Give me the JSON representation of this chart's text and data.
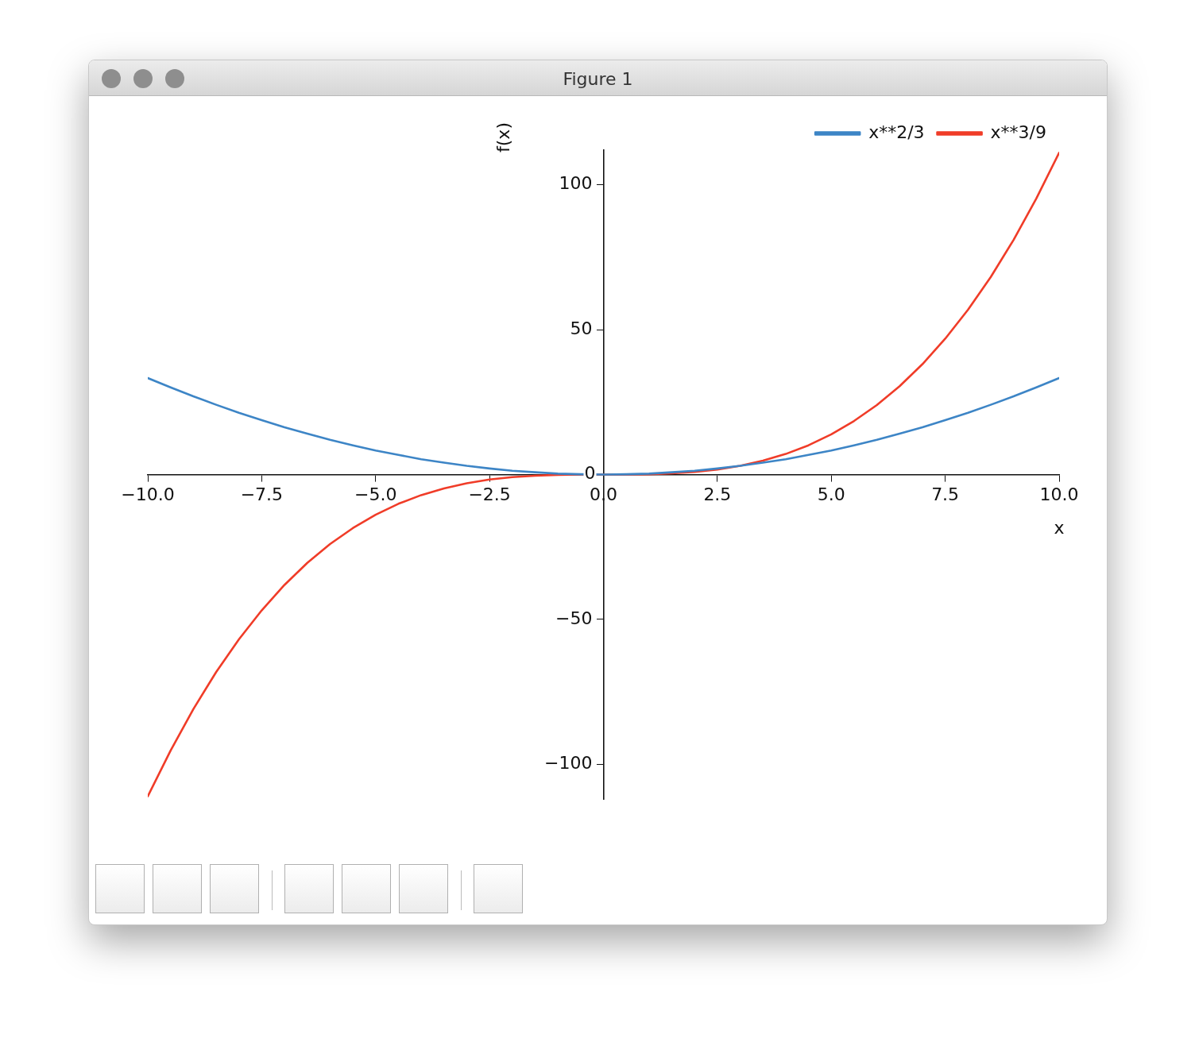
{
  "chart_data": {
    "type": "line",
    "title": "Figure 1",
    "xlabel": "x",
    "ylabel": "f(x)",
    "x": [
      -10,
      -9.5,
      -9,
      -8.5,
      -8,
      -7.5,
      -7,
      -6.5,
      -6,
      -5.5,
      -5,
      -4.5,
      -4,
      -3.5,
      -3,
      -2.5,
      -2,
      -1.5,
      -1,
      -0.5,
      0,
      0.5,
      1,
      1.5,
      2,
      2.5,
      3,
      3.5,
      4,
      4.5,
      5,
      5.5,
      6,
      6.5,
      7,
      7.5,
      8,
      8.5,
      9,
      9.5,
      10
    ],
    "series": [
      {
        "name": "x**2/3",
        "color": "#3d85c6",
        "values": [
          33.3,
          30.1,
          27,
          24.1,
          21.3,
          18.8,
          16.3,
          14.1,
          12,
          10.1,
          8.3,
          6.8,
          5.3,
          4.1,
          3,
          2.1,
          1.3,
          0.8,
          0.3,
          0.1,
          0,
          0.1,
          0.3,
          0.8,
          1.3,
          2.1,
          3,
          4.1,
          5.3,
          6.8,
          8.3,
          10.1,
          12,
          14.1,
          16.3,
          18.8,
          21.3,
          24.1,
          27,
          30.1,
          33.3
        ]
      },
      {
        "name": "x**3/9",
        "color": "#f03c28",
        "values": [
          -111.1,
          -95.3,
          -81,
          -68.2,
          -56.9,
          -46.9,
          -38.1,
          -30.5,
          -24,
          -18.5,
          -13.9,
          -10.1,
          -7.1,
          -4.8,
          -3,
          -1.7,
          -0.9,
          -0.4,
          -0.1,
          0,
          0,
          0,
          0.1,
          0.4,
          0.9,
          1.7,
          3,
          4.8,
          7.1,
          10.1,
          13.9,
          18.5,
          24,
          30.5,
          38.1,
          46.9,
          56.9,
          68.2,
          81,
          95.3,
          111.1
        ]
      }
    ],
    "xlim": [
      -10,
      10
    ],
    "ylim": [
      -112,
      112
    ],
    "xticks": [
      {
        "value": -10,
        "label": "−10.0"
      },
      {
        "value": -7.5,
        "label": "−7.5"
      },
      {
        "value": -5,
        "label": "−5.0"
      },
      {
        "value": -2.5,
        "label": "−2.5"
      },
      {
        "value": 0,
        "label": "0.0"
      },
      {
        "value": 2.5,
        "label": "2.5"
      },
      {
        "value": 5,
        "label": "5.0"
      },
      {
        "value": 7.5,
        "label": "7.5"
      },
      {
        "value": 10,
        "label": "10.0"
      }
    ],
    "yticks": [
      {
        "value": -100,
        "label": "−100"
      },
      {
        "value": -50,
        "label": "−50"
      },
      0,
      50,
      100
    ],
    "legend": "top right"
  }
}
